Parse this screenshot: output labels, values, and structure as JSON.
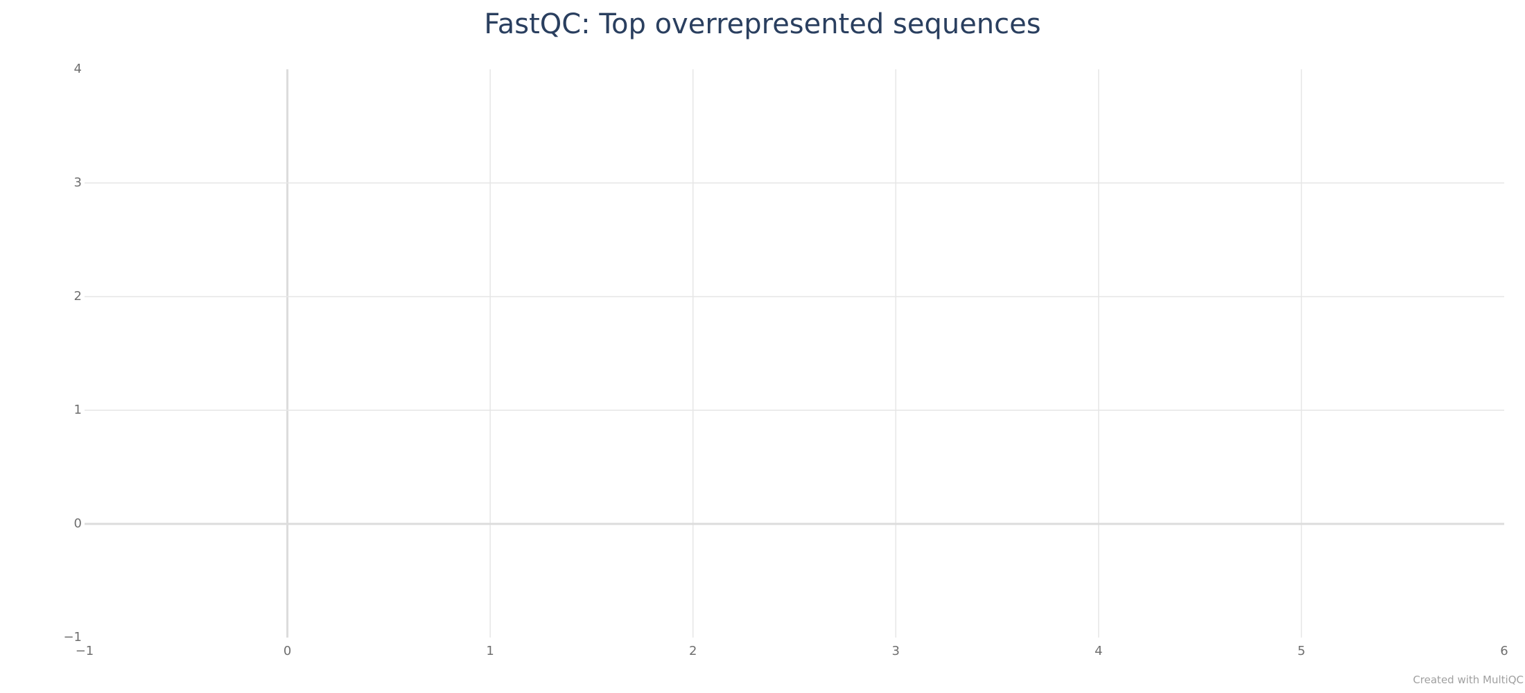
{
  "chart_data": {
    "type": "scatter",
    "title": "FastQC: Top overrepresented sequences",
    "xlabel": "",
    "ylabel": "",
    "xlim": [
      -1,
      6
    ],
    "ylim": [
      -1,
      4
    ],
    "x_ticks": [
      -1,
      0,
      1,
      2,
      3,
      4,
      5,
      6
    ],
    "y_ticks": [
      -1,
      0,
      1,
      2,
      3,
      4
    ],
    "x_tick_labels": [
      "−1",
      "0",
      "1",
      "2",
      "3",
      "4",
      "5",
      "6"
    ],
    "y_tick_labels": [
      "−1",
      "0",
      "1",
      "2",
      "3",
      "4"
    ],
    "series": [],
    "grid": true
  },
  "credit": "Created with MultiQC",
  "colors": {
    "title": "#2a3f5f",
    "grid": "#e6e6e6",
    "zeroline": "#dcdcdc",
    "tick_text": "#6e6e6e",
    "credit": "#a0a0a0"
  }
}
